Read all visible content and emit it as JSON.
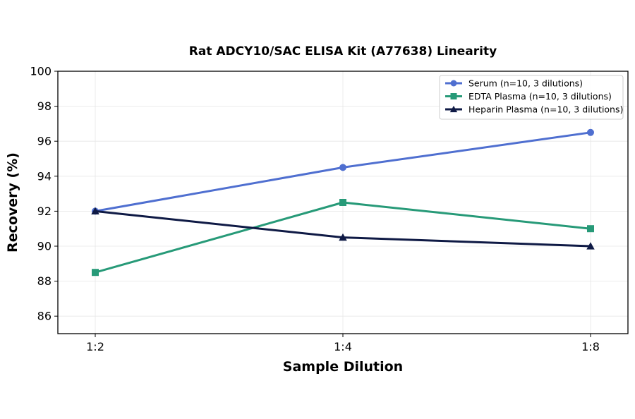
{
  "chart_data": {
    "type": "line",
    "title": "Rat ADCY10/SAC ELISA Kit (A77638) Linearity",
    "xlabel": "Sample Dilution",
    "ylabel": "Recovery (%)",
    "categories": [
      "1:2",
      "1:4",
      "1:8"
    ],
    "ylim": [
      85,
      100
    ],
    "yticks": [
      86,
      88,
      90,
      92,
      94,
      96,
      98,
      100
    ],
    "grid": true,
    "legend_position": "top-right",
    "series": [
      {
        "name": "Serum (n=10, 3 dilutions)",
        "values": [
          92.0,
          94.5,
          96.5
        ],
        "color": "#4f6fd0",
        "marker": "circle"
      },
      {
        "name": "EDTA Plasma (n=10, 3 dilutions)",
        "values": [
          88.5,
          92.5,
          91.0
        ],
        "color": "#279a78",
        "marker": "square"
      },
      {
        "name": "Heparin Plasma (n=10, 3 dilutions)",
        "values": [
          92.0,
          90.5,
          90.0
        ],
        "color": "#0f1a45",
        "marker": "triangle"
      }
    ]
  }
}
